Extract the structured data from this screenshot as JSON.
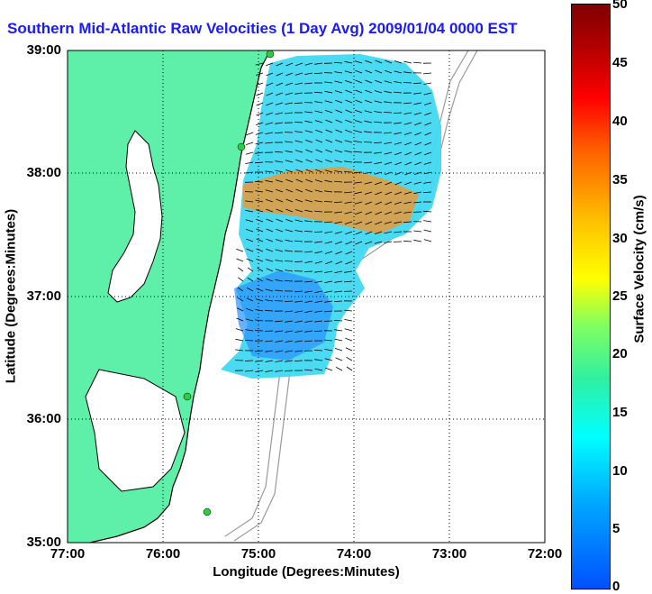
{
  "title": "Southern Mid-Atlantic Raw Velocities (1 Day Avg) 2009/01/04 0000 EST",
  "axes": {
    "xlabel": "Longitude (Degrees:Minutes)",
    "ylabel": "Latitude (Degrees:Minutes)",
    "xticks": [
      "77:00",
      "76:00",
      "75:00",
      "74:00",
      "73:00",
      "72:00"
    ],
    "yticks": [
      "39:00",
      "38:00",
      "37:00",
      "36:00",
      "35:00"
    ]
  },
  "colorbar": {
    "label": "Surface Velocity (cm/s)",
    "ticks": [
      "50",
      "45",
      "40",
      "35",
      "30",
      "25",
      "20",
      "15",
      "10",
      "5",
      "0"
    ],
    "range": [
      0,
      50
    ]
  },
  "colors": {
    "land": "#5ef0a8",
    "water": "#ffffff",
    "coastline": "#000000",
    "bathymetry": "#9a9a9a",
    "title": "#1a1aff"
  },
  "map": {
    "lon_range": [
      -77,
      -72
    ],
    "lat_range": [
      35,
      39
    ],
    "grid": "dotted"
  }
}
